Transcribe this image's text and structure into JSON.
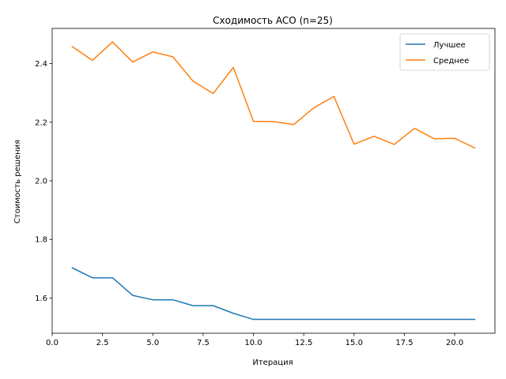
{
  "chart_data": {
    "type": "line",
    "title": "Сходимость ACO (n=25)",
    "xlabel": "Итерация",
    "ylabel": "Стоимость решения",
    "xlim": [
      0,
      22
    ],
    "ylim": [
      1.48,
      2.52
    ],
    "xticks": [
      0,
      2.5,
      5,
      7.5,
      10,
      12.5,
      15,
      17.5,
      20
    ],
    "xtick_labels": [
      "0.0",
      "2.5",
      "5.0",
      "7.5",
      "10.0",
      "12.5",
      "15.0",
      "17.5",
      "20.0"
    ],
    "yticks": [
      1.6,
      1.8,
      2.0,
      2.2,
      2.4
    ],
    "ytick_labels": [
      "1.6",
      "1.8",
      "2.0",
      "2.2",
      "2.4"
    ],
    "grid": false,
    "legend_position": "top-right",
    "x": [
      1,
      2,
      3,
      4,
      5,
      6,
      7,
      8,
      9,
      10,
      11,
      12,
      13,
      14,
      15,
      16,
      17,
      18,
      19,
      20,
      21
    ],
    "series": [
      {
        "name": "Лучшее",
        "color": "#1f77b4",
        "values": [
          1.703,
          1.669,
          1.669,
          1.609,
          1.594,
          1.594,
          1.574,
          1.574,
          1.548,
          1.527,
          1.527,
          1.527,
          1.527,
          1.527,
          1.527,
          1.527,
          1.527,
          1.527,
          1.527,
          1.527,
          1.527
        ]
      },
      {
        "name": "Среднее",
        "color": "#ff7f0e",
        "values": [
          2.458,
          2.411,
          2.474,
          2.405,
          2.44,
          2.423,
          2.34,
          2.298,
          2.387,
          2.203,
          2.202,
          2.192,
          2.249,
          2.288,
          2.125,
          2.152,
          2.124,
          2.179,
          2.143,
          2.145,
          2.112
        ]
      }
    ]
  }
}
